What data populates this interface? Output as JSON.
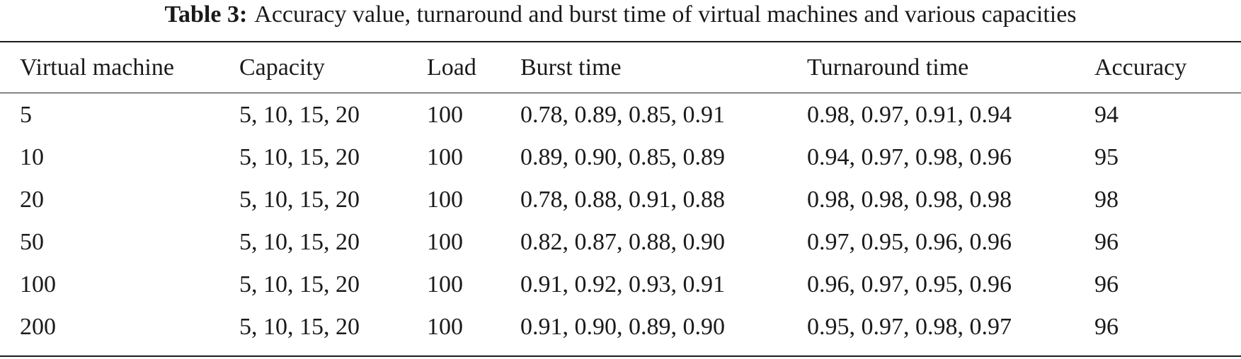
{
  "caption": {
    "label": "Table 3:",
    "text": "Accuracy value, turnaround and burst time of virtual machines and various capacities"
  },
  "table": {
    "headers": [
      "Virtual machine",
      "Capacity",
      "Load",
      "Burst time",
      "Turnaround time",
      "Accuracy"
    ],
    "rows": [
      [
        "5",
        "5, 10, 15, 20",
        "100",
        "0.78, 0.89, 0.85, 0.91",
        "0.98, 0.97, 0.91, 0.94",
        "94"
      ],
      [
        "10",
        "5, 10, 15, 20",
        "100",
        "0.89, 0.90, 0.85, 0.89",
        "0.94, 0.97, 0.98, 0.96",
        "95"
      ],
      [
        "20",
        "5, 10, 15, 20",
        "100",
        "0.78, 0.88, 0.91, 0.88",
        "0.98, 0.98, 0.98, 0.98",
        "98"
      ],
      [
        "50",
        "5, 10, 15, 20",
        "100",
        "0.82, 0.87, 0.88, 0.90",
        "0.97, 0.95, 0.96, 0.96",
        "96"
      ],
      [
        "100",
        "5, 10, 15, 20",
        "100",
        "0.91, 0.92, 0.93, 0.91",
        "0.96, 0.97, 0.95, 0.96",
        "96"
      ],
      [
        "200",
        "5, 10, 15, 20",
        "100",
        "0.91, 0.90, 0.89, 0.90",
        "0.95, 0.97, 0.98, 0.97",
        "96"
      ]
    ]
  }
}
